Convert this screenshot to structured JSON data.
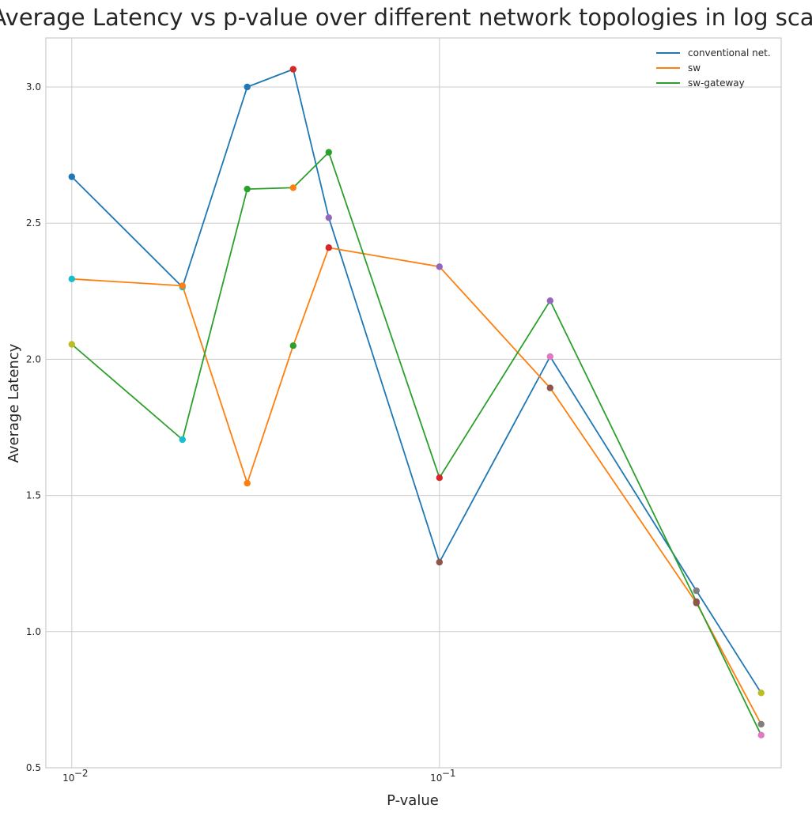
{
  "chart_data": {
    "type": "line",
    "title": "Average Latency vs p-value over different network topologies in log scale",
    "xlabel": "P-value",
    "ylabel": "Average Latency",
    "xscale": "log",
    "xlim": [
      0.0085,
      0.85
    ],
    "ylim": [
      0.5,
      3.18
    ],
    "x": [
      0.01,
      0.02,
      0.03,
      0.04,
      0.05,
      0.1,
      0.2,
      0.5,
      0.75
    ],
    "xticks": [
      {
        "value": 0.01,
        "label": "10"
      },
      {
        "value": 0.1,
        "label": "10"
      }
    ],
    "xtick_exponents": [
      "−2",
      "−1"
    ],
    "yticks": [
      {
        "value": 0.5,
        "label": "0.5"
      },
      {
        "value": 1.0,
        "label": "1.0"
      },
      {
        "value": 1.5,
        "label": "1.5"
      },
      {
        "value": 2.0,
        "label": "2.0"
      },
      {
        "value": 2.5,
        "label": "2.5"
      },
      {
        "value": 3.0,
        "label": "3.0"
      }
    ],
    "grid": true,
    "legend_position": "top-right",
    "series": [
      {
        "name": "conventional net.",
        "color": "#1f77b4",
        "values": [
          2.67,
          2.265,
          3.0,
          3.065,
          2.52,
          1.255,
          2.01,
          1.15,
          0.775
        ]
      },
      {
        "name": "sw",
        "color": "#ff7f0e",
        "values": [
          2.295,
          2.27,
          1.545,
          2.05,
          2.41,
          2.34,
          1.895,
          1.105,
          0.66
        ]
      },
      {
        "name": "sw-gateway",
        "color": "#2ca02c",
        "values": [
          2.055,
          1.705,
          2.625,
          2.63,
          2.76,
          1.565,
          2.215,
          1.11,
          0.62
        ]
      }
    ],
    "marker_colors": [
      [
        "#1f77b4",
        "#17becf",
        "#1f77b4",
        "#d62728",
        "#9467bd",
        "#8c564b",
        "#e377c2",
        "#7f7f7f",
        "#bcbd22"
      ],
      [
        "#17becf",
        "#ff7f0e",
        "#ff7f0e",
        "#2ca02c",
        "#d62728",
        "#9467bd",
        "#8c564b",
        "#8c564b",
        "#7f7f7f"
      ],
      [
        "#bcbd22",
        "#17becf",
        "#2ca02c",
        "#ff7f0e",
        "#2ca02c",
        "#d62728",
        "#9467bd",
        "#8c564b",
        "#e377c2"
      ]
    ]
  }
}
